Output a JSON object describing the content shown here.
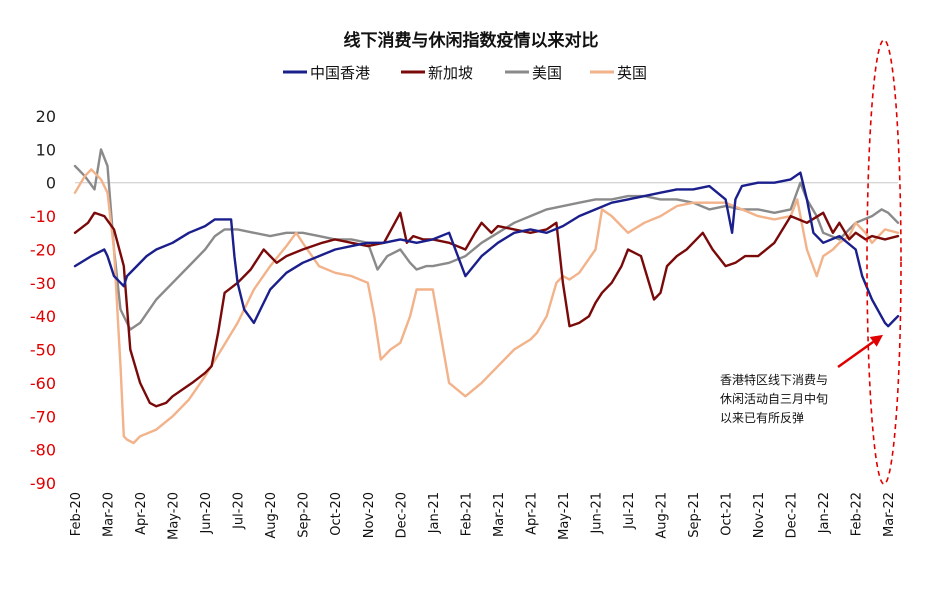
{
  "colors": {
    "hk": "#1a1f8c",
    "sg": "#7a0a0a",
    "us": "#8a8a8a",
    "uk": "#f2b28a",
    "negative_tick": "#e00000",
    "highlight": "#e00000"
  },
  "chart_data": {
    "type": "line",
    "title": "线下消费与休闲指数疫情以来对比",
    "xlabel": "",
    "ylabel": "",
    "ylim": [
      -90,
      20
    ],
    "yticks": [
      20,
      10,
      0,
      -10,
      -20,
      -30,
      -40,
      -50,
      -60,
      -70,
      -80,
      -90
    ],
    "x_domain": [
      0,
      25.3
    ],
    "categories": [
      "Feb-20",
      "Mar-20",
      "Apr-20",
      "May-20",
      "Jun-20",
      "Jul-20",
      "Aug-20",
      "Sep-20",
      "Oct-20",
      "Nov-20",
      "Dec-20",
      "Jan-21",
      "Feb-21",
      "Mar-21",
      "Apr-21",
      "May-21",
      "Jun-21",
      "Jul-21",
      "Aug-21",
      "Sep-21",
      "Oct-21",
      "Nov-21",
      "Dec-21",
      "Jan-22",
      "Feb-22",
      "Mar-22"
    ],
    "legend_position": "top-center",
    "series": [
      {
        "key": "hk",
        "name": "中国香港",
        "x": [
          0,
          0.5,
          0.9,
          1.0,
          1.2,
          1.5,
          1.6,
          1.9,
          2.2,
          2.5,
          3.0,
          3.5,
          4.0,
          4.3,
          4.5,
          4.8,
          4.9,
          5.0,
          5.2,
          5.5,
          5.7,
          6.0,
          6.5,
          7.0,
          7.5,
          8.0,
          8.5,
          9.0,
          9.5,
          10.0,
          10.5,
          11.0,
          11.5,
          12.0,
          12.5,
          13.0,
          13.5,
          14.0,
          14.5,
          15.0,
          15.5,
          16.0,
          16.5,
          17.0,
          17.5,
          18.0,
          18.5,
          19.0,
          19.5,
          20.0,
          20.2,
          20.3,
          20.5,
          21.0,
          21.5,
          22.0,
          22.3,
          22.5,
          22.7,
          23.0,
          23.5,
          24.0,
          24.2,
          24.5,
          24.9,
          25.0,
          25.2,
          25.3
        ],
        "values": [
          -25,
          -22,
          -20,
          -22,
          -28,
          -31,
          -28,
          -25,
          -22,
          -20,
          -18,
          -15,
          -13,
          -11,
          -11,
          -11,
          -22,
          -30,
          -38,
          -42,
          -38,
          -32,
          -27,
          -24,
          -22,
          -20,
          -19,
          -18,
          -18,
          -17,
          -18,
          -17,
          -15,
          -28,
          -22,
          -18,
          -15,
          -14,
          -15,
          -13,
          -10,
          -8,
          -6,
          -5,
          -4,
          -3,
          -2,
          -2,
          -1,
          -5,
          -15,
          -5,
          -1,
          0,
          0,
          1,
          3,
          -5,
          -15,
          -18,
          -16,
          -20,
          -28,
          -35,
          -42,
          -43,
          -41,
          -40
        ]
      },
      {
        "key": "sg",
        "name": "新加坡",
        "x": [
          0,
          0.4,
          0.6,
          0.9,
          1.2,
          1.5,
          1.7,
          2.0,
          2.3,
          2.5,
          2.8,
          3.0,
          3.3,
          3.6,
          4.0,
          4.2,
          4.4,
          4.6,
          5.0,
          5.2,
          5.4,
          5.8,
          6.0,
          6.2,
          6.5,
          7.0,
          7.3,
          7.6,
          8.0,
          8.5,
          9.0,
          9.5,
          10.0,
          10.2,
          10.4,
          10.7,
          11.0,
          11.5,
          12.0,
          12.3,
          12.5,
          12.8,
          13.0,
          13.5,
          14.0,
          14.5,
          14.8,
          15.0,
          15.2,
          15.5,
          15.8,
          16.0,
          16.2,
          16.5,
          16.8,
          17.0,
          17.4,
          17.8,
          18.0,
          18.2,
          18.5,
          18.8,
          19.0,
          19.3,
          19.6,
          20.0,
          20.3,
          20.6,
          21.0,
          21.5,
          22.0,
          22.5,
          23.0,
          23.3,
          23.5,
          23.8,
          24.0,
          24.3,
          24.5,
          24.9,
          25.3
        ],
        "values": [
          -15,
          -12,
          -9,
          -10,
          -14,
          -25,
          -50,
          -60,
          -66,
          -67,
          -66,
          -64,
          -62,
          -60,
          -57,
          -55,
          -45,
          -33,
          -30,
          -28,
          -26,
          -20,
          -22,
          -24,
          -22,
          -20,
          -19,
          -18,
          -17,
          -18,
          -19,
          -18,
          -9,
          -18,
          -16,
          -17,
          -17,
          -18,
          -20,
          -15,
          -12,
          -15,
          -13,
          -14,
          -15,
          -14,
          -12,
          -30,
          -43,
          -42,
          -40,
          -36,
          -33,
          -30,
          -25,
          -20,
          -22,
          -35,
          -33,
          -25,
          -22,
          -20,
          -18,
          -15,
          -20,
          -25,
          -24,
          -22,
          -22,
          -18,
          -10,
          -12,
          -9,
          -15,
          -12,
          -17,
          -15,
          -17,
          -16,
          -17,
          -16
        ]
      },
      {
        "key": "us",
        "name": "美国",
        "x": [
          0,
          0.3,
          0.6,
          0.8,
          1.0,
          1.2,
          1.4,
          1.7,
          2.0,
          2.5,
          3.0,
          3.5,
          4.0,
          4.3,
          4.6,
          5.0,
          5.5,
          6.0,
          6.5,
          7.0,
          7.5,
          8.0,
          8.5,
          9.0,
          9.3,
          9.6,
          10.0,
          10.3,
          10.5,
          10.8,
          11.0,
          11.5,
          12.0,
          12.5,
          13.0,
          13.5,
          14.0,
          14.5,
          15.0,
          15.5,
          16.0,
          16.5,
          17.0,
          17.5,
          18.0,
          18.5,
          19.0,
          19.5,
          20.0,
          20.5,
          21.0,
          21.5,
          22.0,
          22.3,
          22.5,
          22.8,
          23.0,
          23.5,
          24.0,
          24.5,
          24.8,
          25.0,
          25.3
        ],
        "values": [
          5,
          2,
          -2,
          10,
          5,
          -20,
          -38,
          -44,
          -42,
          -35,
          -30,
          -25,
          -20,
          -16,
          -14,
          -14,
          -15,
          -16,
          -15,
          -15,
          -16,
          -17,
          -17,
          -18,
          -26,
          -22,
          -20,
          -24,
          -26,
          -25,
          -25,
          -24,
          -22,
          -18,
          -15,
          -12,
          -10,
          -8,
          -7,
          -6,
          -5,
          -5,
          -4,
          -4,
          -5,
          -5,
          -6,
          -8,
          -7,
          -8,
          -8,
          -9,
          -8,
          0,
          -5,
          -10,
          -15,
          -17,
          -12,
          -10,
          -8,
          -9,
          -12
        ]
      },
      {
        "key": "uk",
        "name": "英国",
        "x": [
          0,
          0.3,
          0.5,
          0.8,
          1.0,
          1.2,
          1.4,
          1.5,
          1.6,
          1.8,
          2.0,
          2.5,
          3.0,
          3.5,
          4.0,
          4.5,
          5.0,
          5.5,
          6.0,
          6.5,
          6.8,
          7.0,
          7.5,
          8.0,
          8.5,
          9.0,
          9.2,
          9.4,
          9.7,
          10.0,
          10.3,
          10.5,
          10.8,
          11.0,
          11.5,
          12.0,
          12.5,
          13.0,
          13.5,
          14.0,
          14.2,
          14.5,
          14.8,
          15.0,
          15.2,
          15.5,
          16.0,
          16.2,
          16.5,
          17.0,
          17.5,
          18.0,
          18.5,
          19.0,
          19.5,
          20.0,
          20.5,
          21.0,
          21.5,
          22.0,
          22.2,
          22.5,
          22.8,
          23.0,
          23.3,
          23.5,
          23.8,
          24.0,
          24.3,
          24.5,
          24.9,
          25.3
        ],
        "values": [
          -3,
          2,
          4,
          1,
          -3,
          -20,
          -55,
          -76,
          -77,
          -78,
          -76,
          -74,
          -70,
          -65,
          -58,
          -50,
          -42,
          -32,
          -25,
          -19,
          -15,
          -18,
          -25,
          -27,
          -28,
          -30,
          -40,
          -53,
          -50,
          -48,
          -40,
          -32,
          -32,
          -32,
          -60,
          -64,
          -60,
          -55,
          -50,
          -47,
          -45,
          -40,
          -30,
          -28,
          -29,
          -27,
          -20,
          -8,
          -10,
          -15,
          -12,
          -10,
          -7,
          -6,
          -6,
          -6,
          -8,
          -10,
          -11,
          -10,
          -5,
          -20,
          -28,
          -22,
          -20,
          -18,
          -16,
          -12,
          -15,
          -18,
          -14,
          -15
        ]
      }
    ],
    "annotation": {
      "lines": [
        "香港特区线下消费与",
        "休闲活动自三月中旬",
        "以来已有所反弹"
      ],
      "arrow_target": {
        "x": 24.9,
        "y": -45
      }
    }
  }
}
